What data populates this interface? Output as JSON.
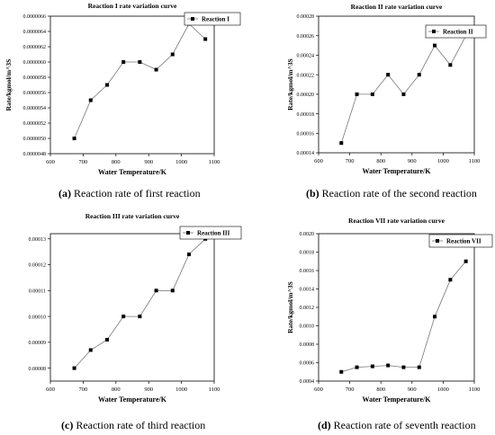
{
  "charts": [
    {
      "caption_letter": "(a)",
      "caption_text": " Reaction rate of first reaction",
      "chart_data": {
        "type": "line",
        "title": "Reaction I rate variation curve",
        "xlabel": "Water Temperature/K",
        "ylabel": "Rate/kgmol/m^3S",
        "xlim": [
          600,
          1100
        ],
        "ylim": [
          4.8e-06,
          6.6e-06
        ],
        "x_ticks": [
          "600",
          "700",
          "800",
          "900",
          "1000",
          "1100"
        ],
        "y_ticks": [
          "0.0000048",
          "0.0000050",
          "0.0000052",
          "0.0000054",
          "0.0000056",
          "0.0000058",
          "0.0000060",
          "0.0000062",
          "0.0000064",
          "0.0000066"
        ],
        "legend_position": "top-right",
        "series": [
          {
            "name": "Reaction I",
            "x": [
              673,
              723,
              773,
              823,
              873,
              923,
              973,
              1023,
              1073
            ],
            "y": [
              5e-06,
              5.5e-06,
              5.7e-06,
              6e-06,
              6e-06,
              5.9e-06,
              6.1e-06,
              6.5e-06,
              6.3e-06
            ]
          }
        ]
      }
    },
    {
      "caption_letter": "(b)",
      "caption_text": " Reaction rate of the second reaction",
      "chart_data": {
        "type": "line",
        "title": "Reaction II rate variation curve",
        "xlabel": "Water Temperature/K",
        "ylabel": "Rate/kgmol/m^3S",
        "xlim": [
          600,
          1100
        ],
        "ylim": [
          0.00014,
          0.00028
        ],
        "x_ticks": [
          "600",
          "700",
          "800",
          "900",
          "1000",
          "1100"
        ],
        "y_ticks": [
          "0.00014",
          "0.00016",
          "0.00018",
          "0.00020",
          "0.00022",
          "0.00024",
          "0.00026",
          "0.00028"
        ],
        "legend_position": "top-right",
        "series": [
          {
            "name": "Reaction II",
            "x": [
              673,
              723,
              773,
              823,
              873,
              923,
              973,
              1023,
              1073
            ],
            "y": [
              0.00015,
              0.0002,
              0.0002,
              0.00022,
              0.0002,
              0.00022,
              0.00025,
              0.00023,
              0.00026
            ]
          }
        ]
      }
    },
    {
      "caption_letter": "(c)",
      "caption_text": " Reaction rate of third reaction",
      "chart_data": {
        "type": "line",
        "title": "Reaction III rate variation curve",
        "xlabel": "Water Temperature/K",
        "ylabel": "",
        "xlim": [
          600,
          1100
        ],
        "ylim": [
          7.5e-05,
          0.000132
        ],
        "x_ticks": [
          "600",
          "700",
          "800",
          "900",
          "1000",
          "1100"
        ],
        "y_ticks": [
          "0.00008",
          "0.00009",
          "0.00010",
          "0.00011",
          "0.00012",
          "0.00013"
        ],
        "legend_position": "top-right",
        "series": [
          {
            "name": "Reaction III",
            "x": [
              673,
              723,
              773,
              823,
              873,
              923,
              973,
              1023,
              1073
            ],
            "y": [
              8e-05,
              8.7e-05,
              9.1e-05,
              0.0001,
              0.0001,
              0.00011,
              0.00011,
              0.000124,
              0.00013
            ]
          }
        ]
      }
    },
    {
      "caption_letter": "(d)",
      "caption_text": " Reaction rate of seventh reaction",
      "chart_data": {
        "type": "line",
        "title": "Reaction VII rate variation curve",
        "xlabel": "Water Temperature/K",
        "ylabel": "Rate/kgmol/m^3S",
        "xlim": [
          600,
          1100
        ],
        "ylim": [
          0.0004,
          0.002
        ],
        "x_ticks": [
          "600",
          "700",
          "800",
          "900",
          "1000",
          "1100"
        ],
        "y_ticks": [
          "0.0004",
          "0.0006",
          "0.0008",
          "0.0010",
          "0.0012",
          "0.0014",
          "0.0016",
          "0.0018",
          "0.0020"
        ],
        "legend_position": "top-right",
        "series": [
          {
            "name": "Reaction VII",
            "x": [
              673,
              723,
              773,
              823,
              873,
              923,
              973,
              1023,
              1073
            ],
            "y": [
              0.0005,
              0.00055,
              0.00056,
              0.00057,
              0.00055,
              0.00055,
              0.0011,
              0.0015,
              0.0017
            ]
          }
        ]
      }
    }
  ]
}
